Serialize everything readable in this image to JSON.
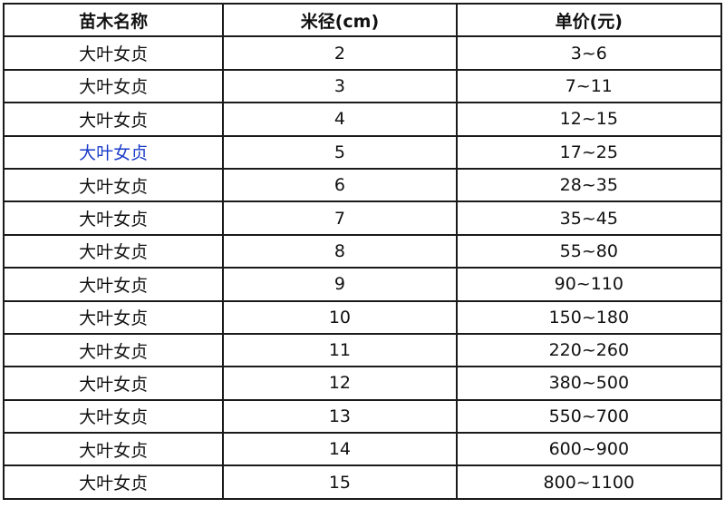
{
  "table": {
    "headers": [
      "苗木名称",
      "米径(cm)",
      "单价(元)"
    ],
    "rows": [
      [
        "大叶女贞",
        "2",
        "3~6"
      ],
      [
        "大叶女贞",
        "3",
        "7~11"
      ],
      [
        "大叶女贞",
        "4",
        "12~15"
      ],
      [
        "大叶女贞",
        "5",
        "17~25"
      ],
      [
        "大叶女贞",
        "6",
        "28~35"
      ],
      [
        "大叶女贞",
        "7",
        "35~45"
      ],
      [
        "大叶女贞",
        "8",
        "55~80"
      ],
      [
        "大叶女贞",
        "9",
        "90~110"
      ],
      [
        "大叶女贞",
        "10",
        "150~180"
      ],
      [
        "大叶女贞",
        "11",
        "220~260"
      ],
      [
        "大叶女贞",
        "12",
        "380~500"
      ],
      [
        "大叶女贞",
        "13",
        "550~700"
      ],
      [
        "大叶女贞",
        "14",
        "600~900"
      ],
      [
        "大叶女贞",
        "15",
        "800~1100"
      ]
    ],
    "highlight_row": 3,
    "highlight_color": "#1a3cc8"
  }
}
